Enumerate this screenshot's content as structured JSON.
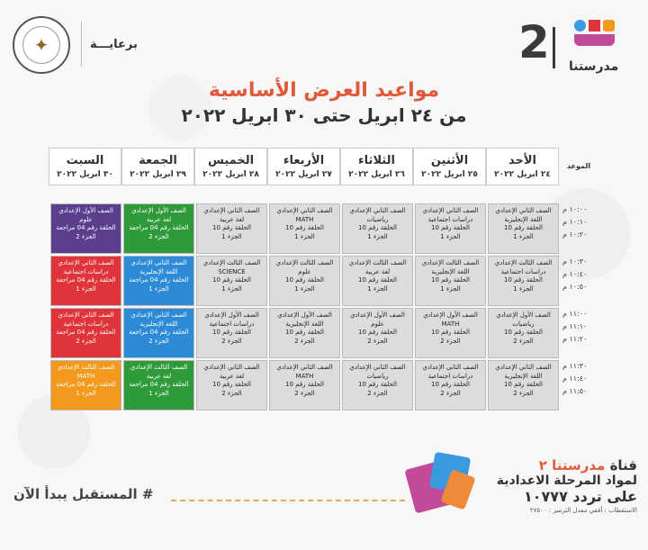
{
  "header": {
    "sponsor": "برعايـــة",
    "brand_number": "2",
    "brand_name": "مدرستنا",
    "title": "مواعيد العرض الأساسية",
    "subtitle": "من ٢٤ ابريل حتى ٣٠ ابريل ٢٠٢٢"
  },
  "colors": {
    "title": "#e05a3a",
    "gray_cell": "#dcdcdc",
    "purple": "#5b3e8e",
    "green": "#2f9a3a",
    "red": "#e0343a",
    "blue": "#2d8ad6",
    "orange": "#f39a1e"
  },
  "time_header": "الموعد",
  "days": [
    {
      "name": "الأحد",
      "date": "٢٤ ابريل ٢٠٢٢"
    },
    {
      "name": "الأثنين",
      "date": "٢٥ ابريل ٢٠٢٢"
    },
    {
      "name": "الثلاثاء",
      "date": "٢٦ ابريل ٢٠٢٢"
    },
    {
      "name": "الأربعاء",
      "date": "٢٧ ابريل ٢٠٢٢"
    },
    {
      "name": "الخميس",
      "date": "٢٨ ابريل ٢٠٢٢"
    },
    {
      "name": "الجمعة",
      "date": "٢٩ ابريل ٢٠٢٢"
    },
    {
      "name": "السبت",
      "date": "٣٠ ابريل ٢٠٢٢"
    }
  ],
  "time_blocks": [
    [
      "١٠:٠٠ م",
      "١٠:١٠ م",
      "١٠:٢٠ م"
    ],
    [
      "١٠:٣٠ م",
      "١٠:٤٠ م",
      "١٠:٥٠ م"
    ],
    [
      "١١:٠٠ م",
      "١١:١٠ م",
      "١١:٢٠ م"
    ],
    [
      "١١:٣٠ م",
      "١١:٤٠ م",
      "١١:٥٠ م"
    ]
  ],
  "rows": [
    [
      {
        "color": "gray",
        "lines": [
          "الصف الثاني الإعدادي",
          "اللغة الإنجليزية",
          "الحلقة رقم 10",
          "الجزء 1"
        ]
      },
      {
        "color": "gray",
        "lines": [
          "الصف الثاني الإعدادي",
          "دراسات اجتماعية",
          "الحلقة رقم 10",
          "الجزء 1"
        ]
      },
      {
        "color": "gray",
        "lines": [
          "الصف الثاني الإعدادي",
          "رياضيات",
          "الحلقة رقم 10",
          "الجزء 1"
        ]
      },
      {
        "color": "gray",
        "lines": [
          "الصف الثاني الإعدادي",
          "MATH",
          "الحلقة رقم 10",
          "الجزء 1"
        ]
      },
      {
        "color": "gray",
        "lines": [
          "الصف الثاني الإعدادي",
          "لغة عربية",
          "الحلقة رقم 10",
          "الجزء 1"
        ]
      },
      {
        "color": "green",
        "lines": [
          "الصف الأول الإعدادي",
          "لغة عربية",
          "الحلقة رقم 04 مراجعة",
          "الجزء 2"
        ]
      },
      {
        "color": "purple",
        "lines": [
          "الصف الأول الإعدادي",
          "علوم",
          "الحلقة رقم 04 مراجعة",
          "الجزء 2"
        ]
      }
    ],
    [
      {
        "color": "gray",
        "lines": [
          "الصف الثالث الإعدادي",
          "دراسات اجتماعية",
          "الحلقة رقم 10",
          "الجزء 1"
        ]
      },
      {
        "color": "gray",
        "lines": [
          "الصف الثالث الإعدادي",
          "اللغة الإنجليزية",
          "الحلقة رقم 10",
          "الجزء 1"
        ]
      },
      {
        "color": "gray",
        "lines": [
          "الصف الثالث الإعدادي",
          "لغة عربية",
          "الحلقة رقم 10",
          "الجزء 1"
        ]
      },
      {
        "color": "gray",
        "lines": [
          "الصف الثالث الإعدادي",
          "علوم",
          "الحلقة رقم 10",
          "الجزء 1"
        ]
      },
      {
        "color": "gray",
        "lines": [
          "الصف الثالث الإعدادي",
          "SCIENCE",
          "الحلقة رقم 10",
          "الجزء 1"
        ]
      },
      {
        "color": "blue",
        "lines": [
          "الصف الثاني الإعدادي",
          "اللغة الإنجليزية",
          "الحلقة رقم 04 مراجعة",
          "الجزء 1"
        ]
      },
      {
        "color": "red",
        "lines": [
          "الصف الثاني الإعدادي",
          "دراسات اجتماعية",
          "الحلقة رقم 04 مراجعة",
          "الجزء 1"
        ]
      }
    ],
    [
      {
        "color": "gray",
        "lines": [
          "الصف الأول الإعدادي",
          "رياضيات",
          "الحلقة رقم 10",
          "الجزء 2"
        ]
      },
      {
        "color": "gray",
        "lines": [
          "الصف الأول الإعدادي",
          "MATH",
          "الحلقة رقم 10",
          "الجزء 2"
        ]
      },
      {
        "color": "gray",
        "lines": [
          "الصف الأول الإعدادي",
          "علوم",
          "الحلقة رقم 10",
          "الجزء 2"
        ]
      },
      {
        "color": "gray",
        "lines": [
          "الصف الأول الإعدادي",
          "اللغة الإنجليزية",
          "الحلقة رقم 10",
          "الجزء 2"
        ]
      },
      {
        "color": "gray",
        "lines": [
          "الصف الأول الإعدادي",
          "دراسات اجتماعية",
          "الحلقة رقم 10",
          "الجزء 2"
        ]
      },
      {
        "color": "blue",
        "lines": [
          "الصف الثاني الإعدادي",
          "اللغة الإنجليزية",
          "الحلقة رقم 04 مراجعة",
          "الجزء 2"
        ]
      },
      {
        "color": "red",
        "lines": [
          "الصف الثاني الإعدادي",
          "دراسات اجتماعية",
          "الحلقة رقم 04 مراجعة",
          "الجزء 2"
        ]
      }
    ],
    [
      {
        "color": "gray",
        "lines": [
          "الصف الثاني الإعدادي",
          "اللغة الإنجليزية",
          "الحلقة رقم 10",
          "الجزء 2"
        ]
      },
      {
        "color": "gray",
        "lines": [
          "الصف الثاني الإعدادي",
          "دراسات اجتماعية",
          "الحلقة رقم 10",
          "الجزء 2"
        ]
      },
      {
        "color": "gray",
        "lines": [
          "الصف الثاني الإعدادي",
          "رياضيات",
          "الحلقة رقم 10",
          "الجزء 2"
        ]
      },
      {
        "color": "gray",
        "lines": [
          "الصف الثاني الإعدادي",
          "MATH",
          "الحلقة رقم 10",
          "الجزء 2"
        ]
      },
      {
        "color": "gray",
        "lines": [
          "الصف الثاني الإعدادي",
          "لغة عربية",
          "الحلقة رقم 10",
          "الجزء 2"
        ]
      },
      {
        "color": "green",
        "lines": [
          "الصف الثالث الإعدادي",
          "لغة عربية",
          "الحلقة رقم 04 مراجعة",
          "الجزء 1"
        ]
      },
      {
        "color": "orange",
        "lines": [
          "الصف الثالث الإعدادي",
          "MATH",
          "الحلقة رقم 04 مراجعة",
          "الجزء 1"
        ]
      }
    ]
  ],
  "footer": {
    "slogan": "# المستقبل يبدأ الآن",
    "channel_prefix": "قناة",
    "channel_name": "مدرستنا ٢",
    "channel_line2": "لمواد المرحلة الاعدادية",
    "channel_line3": "على تردد ١٠٧٧٧",
    "channel_line4": "الاستقطاب : أفقي معدل الترميز : ٢٧٥٠٠"
  }
}
